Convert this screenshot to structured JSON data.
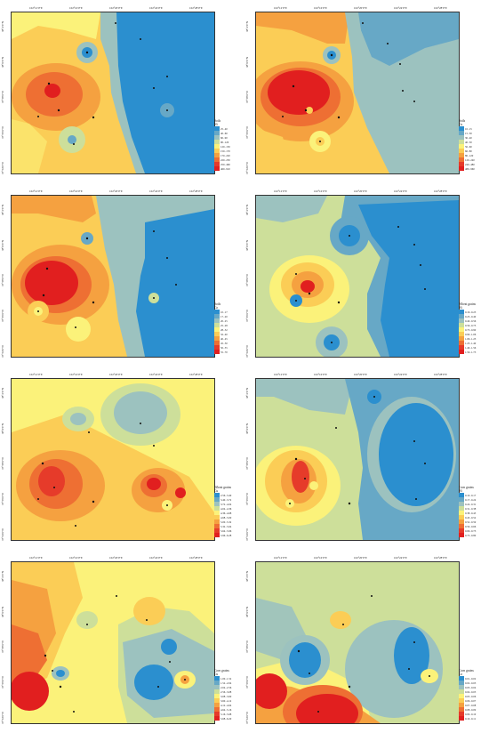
{
  "colors": {
    "c1": "#2b8fcf",
    "c2": "#67a8c6",
    "c3": "#9cc2bf",
    "c4": "#cddf9a",
    "c5": "#fbf27a",
    "c6": "#fbcd56",
    "c7": "#f5a140",
    "c8": "#ee6f33",
    "c9": "#e63b2a",
    "c10": "#e11f1f"
  },
  "x_ticks": [
    "102°12′0″E",
    "102°16′0″E",
    "102°20′0″E",
    "102°24′0″E",
    "102°28′0″E"
  ],
  "y_ticks": [
    "38°2′0″N",
    "38°0′0″N",
    "37°58′0″N",
    "37°56′0″N",
    "37°54′0″N",
    "37°52′0″N"
  ],
  "panels": [
    {
      "legend_title": [
        "Soils",
        "Ni"
      ],
      "legend": [
        "25−40",
        "40−60",
        "60−90",
        "90−120",
        "120−150",
        "150−170",
        "170−220",
        "220−250",
        "250−460",
        "460−910"
      ]
    },
    {
      "legend_title": [
        "Soils",
        "Cu"
      ],
      "legend": [
        "10−15",
        "15−30",
        "30−40",
        "40−50",
        "50−60",
        "60−80",
        "80−120",
        "120−240",
        "240−480",
        "480−960"
      ]
    },
    {
      "legend_title": [
        "Soils",
        "Co"
      ],
      "legend": [
        "10−17",
        "17−20",
        "20−25",
        "25−28",
        "28−32",
        "32−40",
        "40−45",
        "45−50",
        "50−55",
        "55−70"
      ]
    },
    {
      "legend_title": [
        "Wheat grains",
        "Ni"
      ],
      "legend": [
        "0.16−0.23",
        "0.23−0.40",
        "0.40−0.56",
        "0.56−0.73",
        "0.73−0.90",
        "0.90−1.06",
        "1.06−1.23",
        "1.23−1.40",
        "1.40−1.56",
        "1.56−1.73"
      ]
    },
    {
      "legend_title": [
        "Wheat grains",
        "Cu"
      ],
      "legend": [
        "2.56−3.40",
        "3.40−3.72",
        "3.72−4.04",
        "4.04−4.36",
        "4.36−4.68",
        "4.68−5.00",
        "5.00−5.32",
        "5.32−5.64",
        "5.64−5.96",
        "5.96−6.28"
      ]
    },
    {
      "legend_title": [
        "Corn grains",
        "Ni"
      ],
      "legend": [
        "0.10−0.17",
        "0.17−0.24",
        "0.24−0.31",
        "0.31−0.38",
        "0.38−0.45",
        "0.45−0.52",
        "0.52−0.59",
        "0.59−0.66",
        "0.66−0.73",
        "0.73−0.80"
      ]
    },
    {
      "legend_title": [
        "Corn grains",
        "Cu"
      ],
      "legend": [
        "1.00−1.52",
        "1.52−2.04",
        "2.04−2.56",
        "2.56−3.08",
        "3.08−3.60",
        "3.60−4.12",
        "4.12−4.64",
        "4.64−5.16",
        "5.16−5.68",
        "5.68−6.20"
      ]
    },
    {
      "legend_title": [
        "Corn grains",
        "Co"
      ],
      "legend": [
        "0.01−0.02",
        "0.02−0.03",
        "0.03−0.04",
        "0.04−0.05",
        "0.05−0.06",
        "0.06−0.07",
        "0.07−0.08",
        "0.08−0.09",
        "0.09−0.10",
        "0.10−0.11"
      ]
    }
  ]
}
